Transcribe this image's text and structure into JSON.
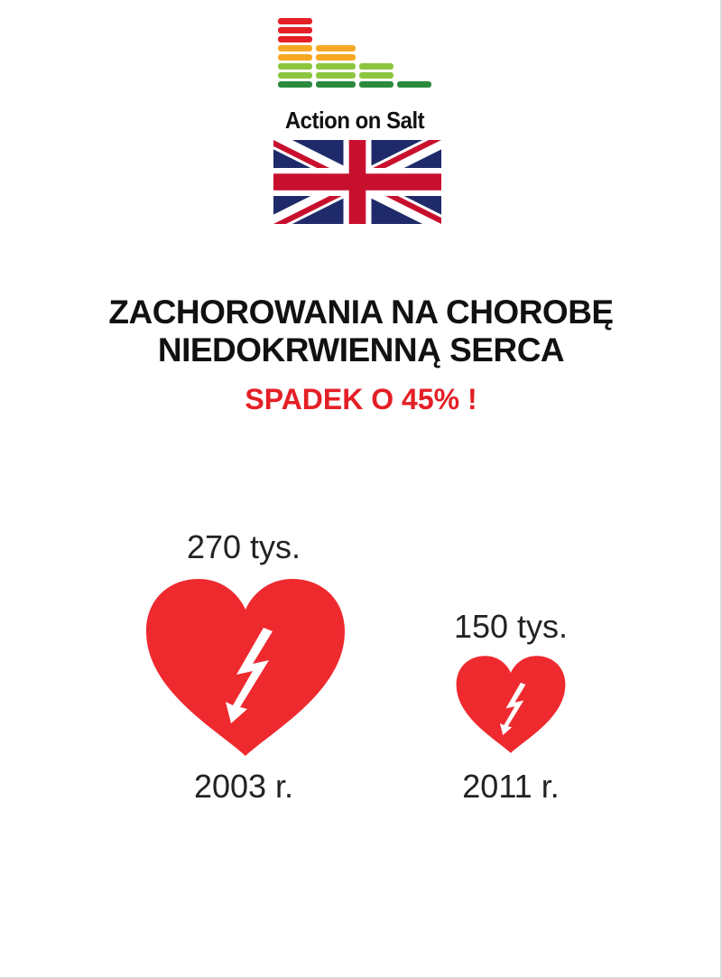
{
  "brand": {
    "name": "Action on Salt"
  },
  "colors": {
    "red": "#e41f26",
    "amber": "#f7a823",
    "green": "#8cc63f",
    "darkgreen": "#2b8a3e",
    "navy": "#1f2a6b",
    "heart": "#ee2a2f"
  },
  "flag": {
    "icon": "uk-flag-icon"
  },
  "headline": {
    "line1": "ZACHOROWANIA NA CHOROBĘ",
    "line2": "NIEDOKRWIENNĄ SERCA",
    "highlight": "SPADEK O 45% !"
  },
  "comparison": [
    {
      "value": "270 tys.",
      "year": "2003 r.",
      "icon": "heart-lightning-icon"
    },
    {
      "value": "150 tys.",
      "year": "2011 r.",
      "icon": "heart-lightning-icon"
    }
  ]
}
